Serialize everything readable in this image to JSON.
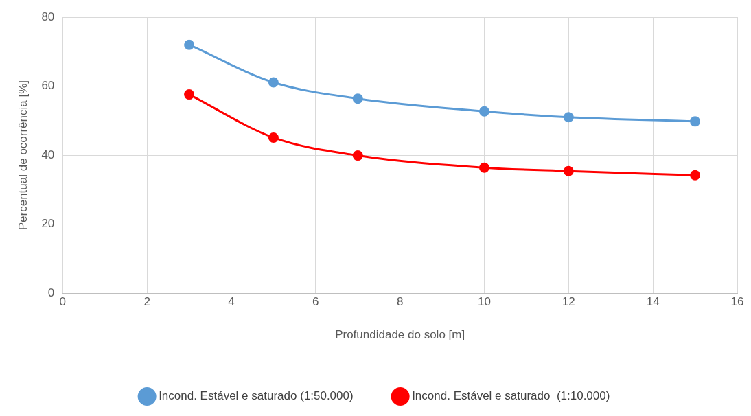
{
  "chart_data": {
    "type": "line",
    "xlabel": "Profundidade do solo [m]",
    "ylabel": "Percentual de ocorrência [%]",
    "x": [
      3,
      5,
      7,
      10,
      12,
      15
    ],
    "series": [
      {
        "name": "Incond. Estável e saturado (1:50.000)",
        "color": "#5b9bd5",
        "values": [
          72.0,
          61.1,
          56.4,
          52.7,
          51.0,
          49.8
        ]
      },
      {
        "name": "Incond. Estável e saturado  (1:10.000)",
        "color": "#ff0000",
        "values": [
          57.6,
          45.1,
          39.9,
          36.4,
          35.4,
          34.2
        ]
      }
    ],
    "xlim": [
      0,
      16
    ],
    "xticks": [
      0,
      2,
      4,
      6,
      8,
      10,
      12,
      14,
      16
    ],
    "ylim": [
      0,
      80
    ],
    "yticks": [
      0,
      20,
      40,
      60,
      80
    ],
    "grid": true,
    "legend": "bottom",
    "marker": "circle",
    "line_style": "solid"
  }
}
